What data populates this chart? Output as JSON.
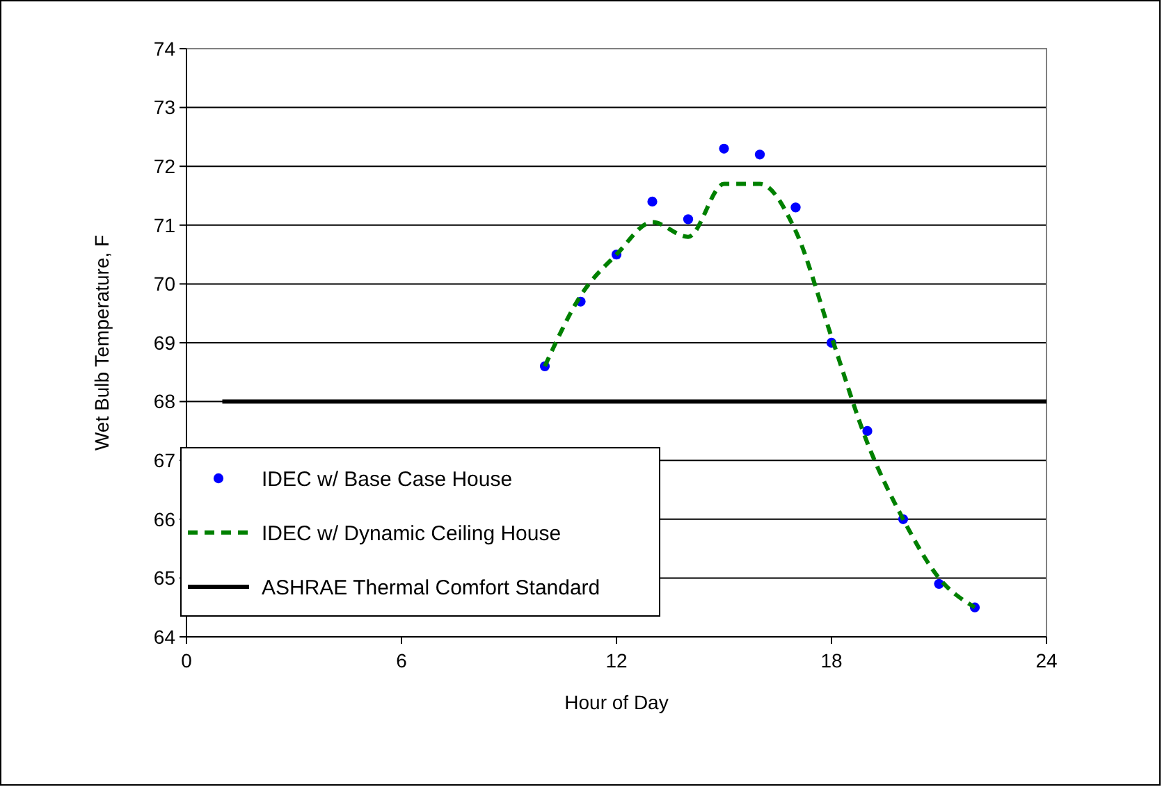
{
  "chart_data": {
    "type": "scatter",
    "xlabel": "Hour of Day",
    "ylabel": "Wet Bulb Temperature, F",
    "xlim": [
      0,
      24
    ],
    "xticks": [
      0,
      6,
      12,
      18,
      24
    ],
    "ylim": [
      64,
      74
    ],
    "yticks": [
      64,
      65,
      66,
      67,
      68,
      69,
      70,
      71,
      72,
      73,
      74
    ],
    "grid": "y",
    "legend": "bottom left",
    "series": [
      {
        "name": "IDEC w/ Base Case House",
        "type": "scatter",
        "marker": "circle",
        "color": "#0000ff",
        "x": [
          10,
          11,
          12,
          13,
          14,
          15,
          16,
          17,
          18,
          19,
          20,
          21,
          22
        ],
        "values": [
          68.6,
          69.7,
          70.5,
          71.4,
          71.1,
          72.3,
          72.2,
          71.3,
          69.0,
          67.5,
          66.0,
          64.9,
          64.5
        ]
      },
      {
        "name": "IDEC w/ Dynamic Ceiling House",
        "type": "line",
        "line_style": "dashed",
        "color": "#008000",
        "x": [
          10,
          11,
          12,
          13,
          14,
          15,
          16,
          17,
          18,
          19,
          20,
          21,
          22
        ],
        "values": [
          68.6,
          69.8,
          70.5,
          71.05,
          70.8,
          71.7,
          71.7,
          70.9,
          69.1,
          67.3,
          66.0,
          65.0,
          64.5
        ]
      },
      {
        "name": "ASHRAE Thermal Comfort Standard",
        "type": "line",
        "line_style": "solid",
        "color": "#000000",
        "x": [
          1,
          24
        ],
        "values": [
          68,
          68
        ]
      }
    ]
  }
}
